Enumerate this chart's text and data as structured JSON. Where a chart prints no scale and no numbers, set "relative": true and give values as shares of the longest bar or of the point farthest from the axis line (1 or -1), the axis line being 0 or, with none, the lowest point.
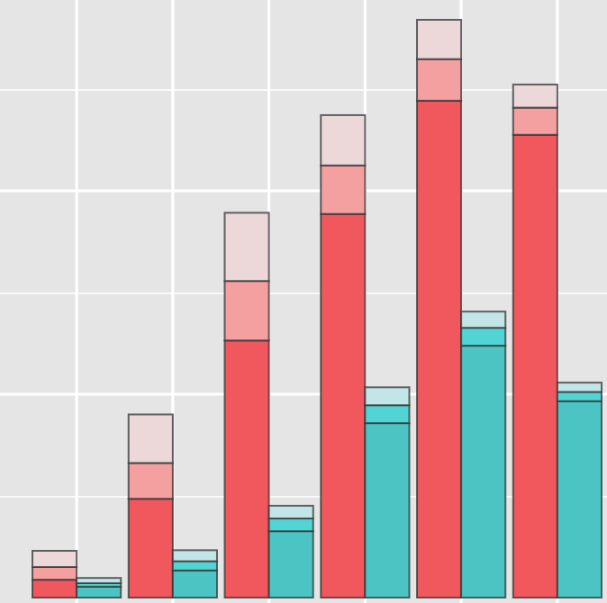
{
  "chart_data": {
    "type": "bar",
    "relative": true,
    "stacked": true,
    "grid": true,
    "categories": [
      null,
      null,
      null,
      null,
      null,
      null,
      null,
      null,
      null,
      null,
      null,
      null
    ],
    "series": [
      {
        "colors": [
          "#f0585e",
          "#4dc4c4",
          "#f0585e",
          "#4dc4c4",
          "#f0585e",
          "#4dc4c4",
          "#f0585e",
          "#4dc4c4",
          "#f0585e",
          "#4dc4c4",
          "#f0585e",
          "#4dc4c4"
        ],
        "values": [
          0.031,
          0.019,
          0.171,
          0.047,
          0.445,
          0.115,
          0.664,
          0.302,
          0.86,
          0.436,
          0.801,
          0.34
        ]
      },
      {
        "colors": [
          "#f4a0a0",
          "#52d4d4",
          "#f4a0a0",
          "#52d4d4",
          "#f4a0a0",
          "#52d4d4",
          "#f4a0a0",
          "#52d4d4",
          "#f4a0a0",
          "#52d4d4",
          "#f4a0a0",
          "#52d4d4"
        ],
        "values": [
          0.022,
          0.006,
          0.062,
          0.016,
          0.103,
          0.022,
          0.084,
          0.031,
          0.072,
          0.031,
          0.047,
          0.016
        ]
      },
      {
        "colors": [
          "#ecd8d8",
          "#c2e6e8",
          "#ecd8d8",
          "#c2e6e8",
          "#ecd8d8",
          "#c2e6e8",
          "#ecd8d8",
          "#c2e6e8",
          "#ecd8d8",
          "#c2e6e8",
          "#ecd8d8",
          "#c2e6e8"
        ],
        "values": [
          0.028,
          0.009,
          0.084,
          0.019,
          0.118,
          0.022,
          0.087,
          0.031,
          0.068,
          0.028,
          0.04,
          0.016
        ]
      }
    ]
  }
}
